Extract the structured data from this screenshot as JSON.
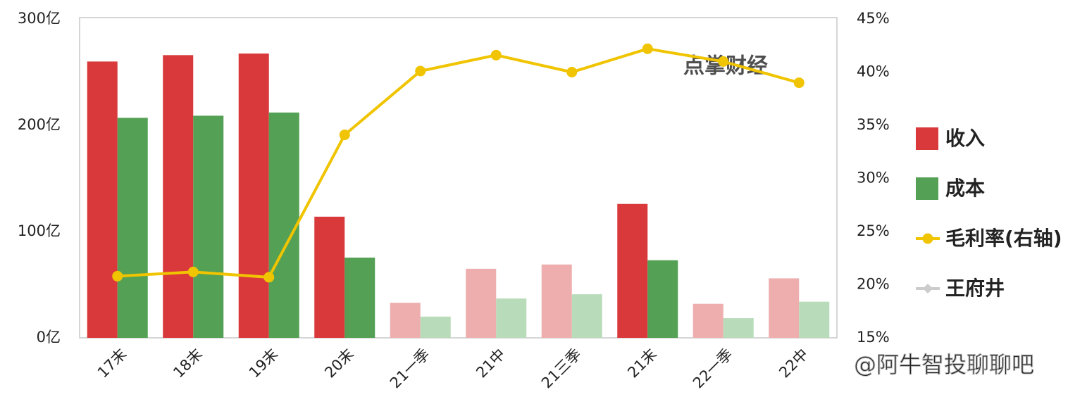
{
  "chart_data": {
    "type": "bar",
    "categories": [
      "17末",
      "18末",
      "19末",
      "20末",
      "21一季",
      "21中",
      "21三季",
      "21末",
      "22一季",
      "22中"
    ],
    "series": [
      {
        "name": "收入",
        "type": "bar",
        "color": "#d9393a",
        "colors": [
          "#d9393a",
          "#d9393a",
          "#d9393a",
          "#d9393a",
          "#eeaeae",
          "#eeaeae",
          "#eeaeae",
          "#d9393a",
          "#eeaeae",
          "#eeaeae"
        ],
        "values": [
          260,
          266,
          267.5,
          114,
          33,
          65,
          69,
          126,
          32,
          56
        ]
      },
      {
        "name": "成本",
        "type": "bar",
        "color": "#54a054",
        "colors": [
          "#54a054",
          "#54a054",
          "#54a054",
          "#54a054",
          "#b8dbb9",
          "#b8dbb9",
          "#b8dbb9",
          "#54a054",
          "#b8dbb9",
          "#b8dbb9"
        ],
        "values": [
          207,
          209,
          212,
          75.5,
          20,
          37,
          41,
          73,
          18.5,
          34
        ]
      },
      {
        "name": "毛利率(右轴)",
        "type": "line",
        "axis": "y2",
        "color": "#f0c400",
        "values": [
          20.8,
          21.2,
          20.7,
          34.1,
          40.1,
          41.6,
          40.0,
          42.2,
          41.0,
          39.0
        ]
      },
      {
        "name": "王府井",
        "type": "line",
        "marker": "diamond",
        "color": "#cccccc",
        "values": [
          null,
          null,
          null,
          null,
          null,
          null,
          null,
          null,
          null,
          null
        ]
      }
    ],
    "ylim": [
      0,
      300
    ],
    "yticks": [
      {
        "value": 0,
        "label": "0亿"
      },
      {
        "value": 100,
        "label": "100亿"
      },
      {
        "value": 200,
        "label": "200亿"
      },
      {
        "value": 300,
        "label": "300亿"
      }
    ],
    "y2lim": [
      15,
      45
    ],
    "y2ticks": [
      {
        "value": 15,
        "label": "15%"
      },
      {
        "value": 20,
        "label": "20%"
      },
      {
        "value": 25,
        "label": "25%"
      },
      {
        "value": 30,
        "label": "30%"
      },
      {
        "value": 35,
        "label": "35%"
      },
      {
        "value": 40,
        "label": "40%"
      },
      {
        "value": 45,
        "label": "45%"
      }
    ],
    "grid": false,
    "legend": "right",
    "watermarks": [
      "点掌财经",
      "@阿牛智投聊聊吧"
    ]
  }
}
